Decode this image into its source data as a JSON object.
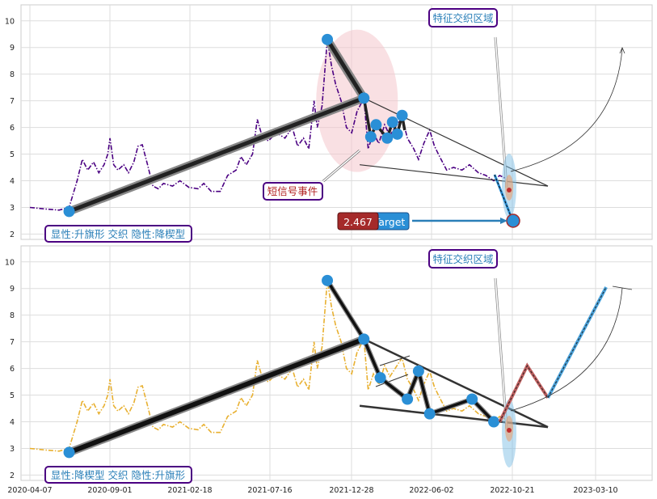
{
  "chart_data": [
    {
      "type": "line",
      "panel": "top",
      "ylim": [
        1.8,
        10.6
      ],
      "yticks": [
        2,
        3,
        4,
        5,
        6,
        7,
        8,
        9,
        10
      ],
      "grid": true,
      "price_color": "#4b0082",
      "price_series": [
        [
          "2020-04-07",
          3.0
        ],
        [
          "2020-05-01",
          2.95
        ],
        [
          "2020-06-01",
          2.9
        ],
        [
          "2020-06-20",
          3.0
        ],
        [
          "2020-07-05",
          4.0
        ],
        [
          "2020-07-15",
          4.8
        ],
        [
          "2020-07-25",
          4.4
        ],
        [
          "2020-08-05",
          4.7
        ],
        [
          "2020-08-15",
          4.3
        ],
        [
          "2020-08-25",
          4.6
        ],
        [
          "2020-09-01",
          5.0
        ],
        [
          "2020-09-05",
          5.6
        ],
        [
          "2020-09-12",
          4.6
        ],
        [
          "2020-09-20",
          4.4
        ],
        [
          "2020-10-01",
          4.6
        ],
        [
          "2020-10-10",
          4.3
        ],
        [
          "2020-10-20",
          4.7
        ],
        [
          "2020-10-28",
          5.3
        ],
        [
          "2020-11-05",
          5.35
        ],
        [
          "2020-11-15",
          4.6
        ],
        [
          "2020-11-25",
          3.8
        ],
        [
          "2020-12-05",
          3.7
        ],
        [
          "2020-12-15",
          3.9
        ],
        [
          "2021-01-01",
          3.8
        ],
        [
          "2021-01-15",
          4.0
        ],
        [
          "2021-02-01",
          3.75
        ],
        [
          "2021-02-18",
          3.7
        ],
        [
          "2021-03-01",
          3.9
        ],
        [
          "2021-03-15",
          3.6
        ],
        [
          "2021-04-01",
          3.6
        ],
        [
          "2021-04-15",
          4.2
        ],
        [
          "2021-05-01",
          4.4
        ],
        [
          "2021-05-10",
          4.9
        ],
        [
          "2021-05-20",
          4.6
        ],
        [
          "2021-06-01",
          5.0
        ],
        [
          "2021-06-10",
          6.3
        ],
        [
          "2021-06-20",
          5.6
        ],
        [
          "2021-07-01",
          5.5
        ],
        [
          "2021-07-16",
          5.8
        ],
        [
          "2021-08-01",
          5.6
        ],
        [
          "2021-08-15",
          6.0
        ],
        [
          "2021-08-25",
          5.3
        ],
        [
          "2021-09-05",
          5.6
        ],
        [
          "2021-09-15",
          5.2
        ],
        [
          "2021-09-25",
          7.0
        ],
        [
          "2021-10-01",
          6.0
        ],
        [
          "2021-10-10",
          6.8
        ],
        [
          "2021-10-20",
          9.3
        ],
        [
          "2021-10-28",
          8.3
        ],
        [
          "2021-11-05",
          7.6
        ],
        [
          "2021-11-15",
          7.0
        ],
        [
          "2021-11-25",
          6.0
        ],
        [
          "2021-12-05",
          5.8
        ],
        [
          "2021-12-15",
          6.6
        ],
        [
          "2021-12-28",
          7.1
        ],
        [
          "2022-01-05",
          5.2
        ],
        [
          "2022-01-15",
          5.8
        ],
        [
          "2022-01-25",
          5.4
        ],
        [
          "2022-02-05",
          6.1
        ],
        [
          "2022-02-15",
          5.7
        ],
        [
          "2022-02-25",
          6.0
        ],
        [
          "2022-03-10",
          6.4
        ],
        [
          "2022-03-20",
          5.6
        ],
        [
          "2022-04-01",
          5.2
        ],
        [
          "2022-04-10",
          4.8
        ],
        [
          "2022-04-20",
          5.4
        ],
        [
          "2022-05-01",
          5.9
        ],
        [
          "2022-05-10",
          5.3
        ],
        [
          "2022-05-20",
          4.9
        ],
        [
          "2022-06-02",
          4.4
        ],
        [
          "2022-06-15",
          4.5
        ],
        [
          "2022-07-01",
          4.4
        ],
        [
          "2022-07-15",
          4.6
        ],
        [
          "2022-08-01",
          4.3
        ],
        [
          "2022-08-15",
          4.2
        ],
        [
          "2022-08-30",
          4.0
        ],
        [
          "2022-09-10",
          4.2
        ],
        [
          "2022-09-20",
          4.1
        ]
      ],
      "pattern_line": [
        [
          "2020-06-20",
          2.85
        ],
        [
          "2021-10-20",
          9.3
        ],
        [
          "2021-12-28",
          7.1
        ],
        [
          "2022-01-10",
          5.65
        ],
        [
          "2022-01-20",
          6.1
        ],
        [
          "2022-02-10",
          5.6
        ],
        [
          "2022-02-20",
          6.2
        ],
        [
          "2022-03-01",
          5.75
        ],
        [
          "2022-03-10",
          6.45
        ],
        [
          "2022-03-15",
          5.9
        ]
      ],
      "thick_segments": [
        [
          [
            "2020-06-20",
            2.85
          ],
          [
            "2021-12-28",
            7.1
          ]
        ],
        [
          [
            "2021-10-20",
            9.3
          ],
          [
            "2021-12-28",
            7.1
          ]
        ]
      ],
      "markers": [
        [
          "2020-06-20",
          2.85
        ],
        [
          "2021-10-20",
          9.3
        ],
        [
          "2021-12-28",
          7.1
        ],
        [
          "2022-01-10",
          5.65
        ],
        [
          "2022-01-20",
          6.1
        ],
        [
          "2022-02-10",
          5.6
        ],
        [
          "2022-02-20",
          6.2
        ],
        [
          "2022-03-01",
          5.75
        ],
        [
          "2022-03-10",
          6.45
        ]
      ],
      "trend_lines": [
        [
          [
            "2021-12-28",
            7.1
          ],
          [
            "2022-12-10",
            3.8
          ]
        ],
        [
          [
            "2021-12-20",
            4.6
          ],
          [
            "2022-12-10",
            3.8
          ]
        ]
      ],
      "highlight_circle": {
        "center": [
          "2021-12-15",
          7.0
        ],
        "radius_days": 140
      },
      "signal_label": "短信号事件",
      "zone_label": "特征交织区域",
      "bottom_label": "显性:升旗形 交织 隐性:降楔型",
      "target_value_label": "2.467",
      "target_text_label": "Target",
      "target_point": [
        "2022-10-18",
        2.467
      ],
      "target_arrow_from": [
        "2022-05-15",
        2.5
      ],
      "target_cross": [
        "2022-10-10",
        3.7
      ],
      "forecast_arc": [
        [
          "2022-10-18",
          4.2
        ],
        [
          "2023-03-30",
          9.1
        ]
      ]
    },
    {
      "type": "line",
      "panel": "bottom",
      "xlabels": [
        "2020-04-07",
        "2020-09-01",
        "2021-02-18",
        "2021-07-16",
        "2021-12-28",
        "2022-06-02",
        "2022-10-21",
        "2023-03-10"
      ],
      "ylim": [
        1.8,
        10.6
      ],
      "yticks": [
        2,
        3,
        4,
        5,
        6,
        7,
        8,
        9,
        10
      ],
      "grid": true,
      "price_color": "#e8b030",
      "pattern_line": [
        [
          "2020-06-20",
          2.85
        ],
        [
          "2021-10-20",
          9.3
        ],
        [
          "2021-12-28",
          7.1
        ],
        [
          "2022-01-28",
          5.65
        ],
        [
          "2022-03-20",
          4.85
        ],
        [
          "2022-04-10",
          5.9
        ],
        [
          "2022-05-01",
          4.3
        ],
        [
          "2022-07-20",
          4.85
        ],
        [
          "2022-08-30",
          4.0
        ]
      ],
      "thick_segments": [
        [
          [
            "2020-06-20",
            2.85
          ],
          [
            "2021-12-28",
            7.1
          ]
        ]
      ],
      "markers": [
        [
          "2020-06-20",
          2.85
        ],
        [
          "2021-10-20",
          9.3
        ],
        [
          "2021-12-28",
          7.1
        ],
        [
          "2022-01-28",
          5.65
        ],
        [
          "2022-03-20",
          4.85
        ],
        [
          "2022-04-10",
          5.9
        ],
        [
          "2022-05-01",
          4.3
        ],
        [
          "2022-07-20",
          4.85
        ],
        [
          "2022-08-30",
          4.0
        ]
      ],
      "trend_lines": [
        [
          [
            "2021-12-28",
            7.1
          ],
          [
            "2022-12-10",
            3.8
          ]
        ],
        [
          [
            "2021-12-20",
            4.6
          ],
          [
            "2022-12-10",
            3.8
          ]
        ]
      ],
      "projection_red": [
        [
          "2022-09-10",
          4.0
        ],
        [
          "2022-11-01",
          6.1
        ],
        [
          "2022-12-10",
          4.9
        ]
      ],
      "projection_blue": [
        [
          "2022-12-10",
          4.9
        ],
        [
          "2023-03-30",
          9.05
        ]
      ],
      "zone_label": "特征交织区域",
      "bottom_label": "显性:降楔型 交织 隐性:升旗形"
    }
  ],
  "colors": {
    "accent_blue": "#2a8fd6",
    "label_border": "#4b0082",
    "label_text": "#2a7fb8",
    "signal_text": "#b22222",
    "target_red": "#a52a2a"
  }
}
